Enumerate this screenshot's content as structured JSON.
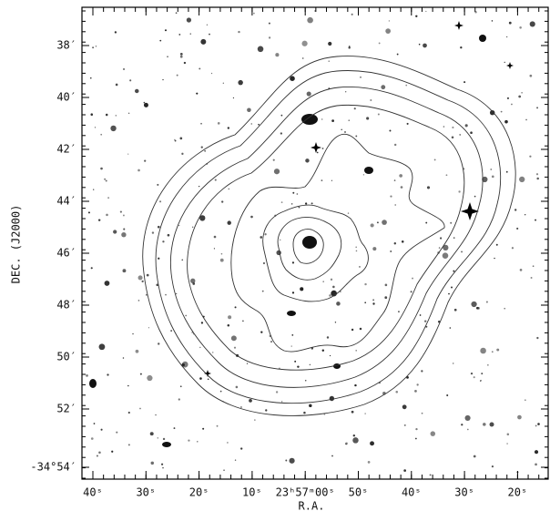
{
  "axes": {
    "xlabel": "R.A.",
    "ylabel": "DEC. (J2000)",
    "xticks": [
      "40ˢ",
      "30ˢ",
      "20ˢ",
      "10ˢ",
      "23ʰ57ᵐ00ˢ",
      "50ˢ",
      "40ˢ",
      "30ˢ",
      "20ˢ"
    ],
    "yticks": [
      "38′",
      "40′",
      "42′",
      "44′",
      "46′",
      "48′",
      "50′",
      "52′",
      "-34°54′"
    ]
  }
}
